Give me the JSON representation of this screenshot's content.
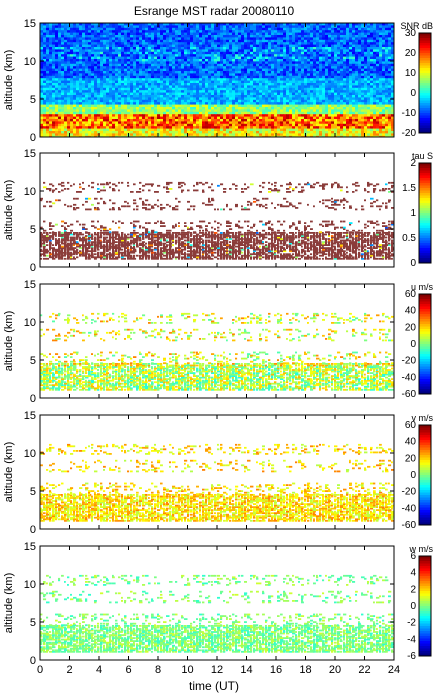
{
  "figure": {
    "title": "Esrange MST radar 20080110",
    "xlabel": "time (UT)",
    "xticks": [
      "0",
      "2",
      "4",
      "6",
      "8",
      "10",
      "12",
      "14",
      "16",
      "18",
      "20",
      "22",
      "24"
    ]
  },
  "chart_data": [
    {
      "type": "heatmap",
      "title": "Esrange MST radar 20080110",
      "xlabel": "",
      "ylabel": "altitude (km)",
      "xlim": [
        0,
        24
      ],
      "ylim": [
        0,
        15
      ],
      "yticks": [
        "0",
        "5",
        "10",
        "15"
      ],
      "colorbar": {
        "label": "SNR dB",
        "range": [
          -20,
          30
        ],
        "ticks": [
          "30",
          "20",
          "10",
          "0",
          "-10",
          "-20"
        ]
      },
      "description": "dense field; strongest echoes 1-3 km, weak background above"
    },
    {
      "type": "heatmap",
      "ylabel": "altitude (km)",
      "xlim": [
        0,
        24
      ],
      "ylim": [
        0,
        15
      ],
      "yticks": [
        "0",
        "5",
        "10",
        "15"
      ],
      "colorbar": {
        "label": "tau S",
        "range": [
          0,
          2
        ],
        "ticks": [
          "2",
          "1.5",
          "1",
          "0.5",
          "0"
        ]
      }
    },
    {
      "type": "heatmap",
      "ylabel": "altitude (km)",
      "xlim": [
        0,
        24
      ],
      "ylim": [
        0,
        15
      ],
      "yticks": [
        "0",
        "5",
        "10",
        "15"
      ],
      "colorbar": {
        "label": "u m/s",
        "range": [
          -60,
          60
        ],
        "ticks": [
          "60",
          "40",
          "20",
          "0",
          "-20",
          "-40",
          "-60"
        ]
      }
    },
    {
      "type": "heatmap",
      "ylabel": "altitude (km)",
      "xlim": [
        0,
        24
      ],
      "ylim": [
        0,
        15
      ],
      "yticks": [
        "0",
        "5",
        "10",
        "15"
      ],
      "colorbar": {
        "label": "v m/s",
        "range": [
          -60,
          60
        ],
        "ticks": [
          "60",
          "40",
          "20",
          "0",
          "-20",
          "-40",
          "-60"
        ]
      }
    },
    {
      "type": "heatmap",
      "ylabel": "altitude (km)",
      "xlim": [
        0,
        24
      ],
      "ylim": [
        0,
        15
      ],
      "yticks": [
        "0",
        "5",
        "10",
        "15"
      ],
      "colorbar": {
        "label": "w m/s",
        "range": [
          -6,
          6
        ],
        "ticks": [
          "6",
          "4",
          "2",
          "0",
          "-2",
          "-4",
          "-6"
        ]
      }
    }
  ]
}
